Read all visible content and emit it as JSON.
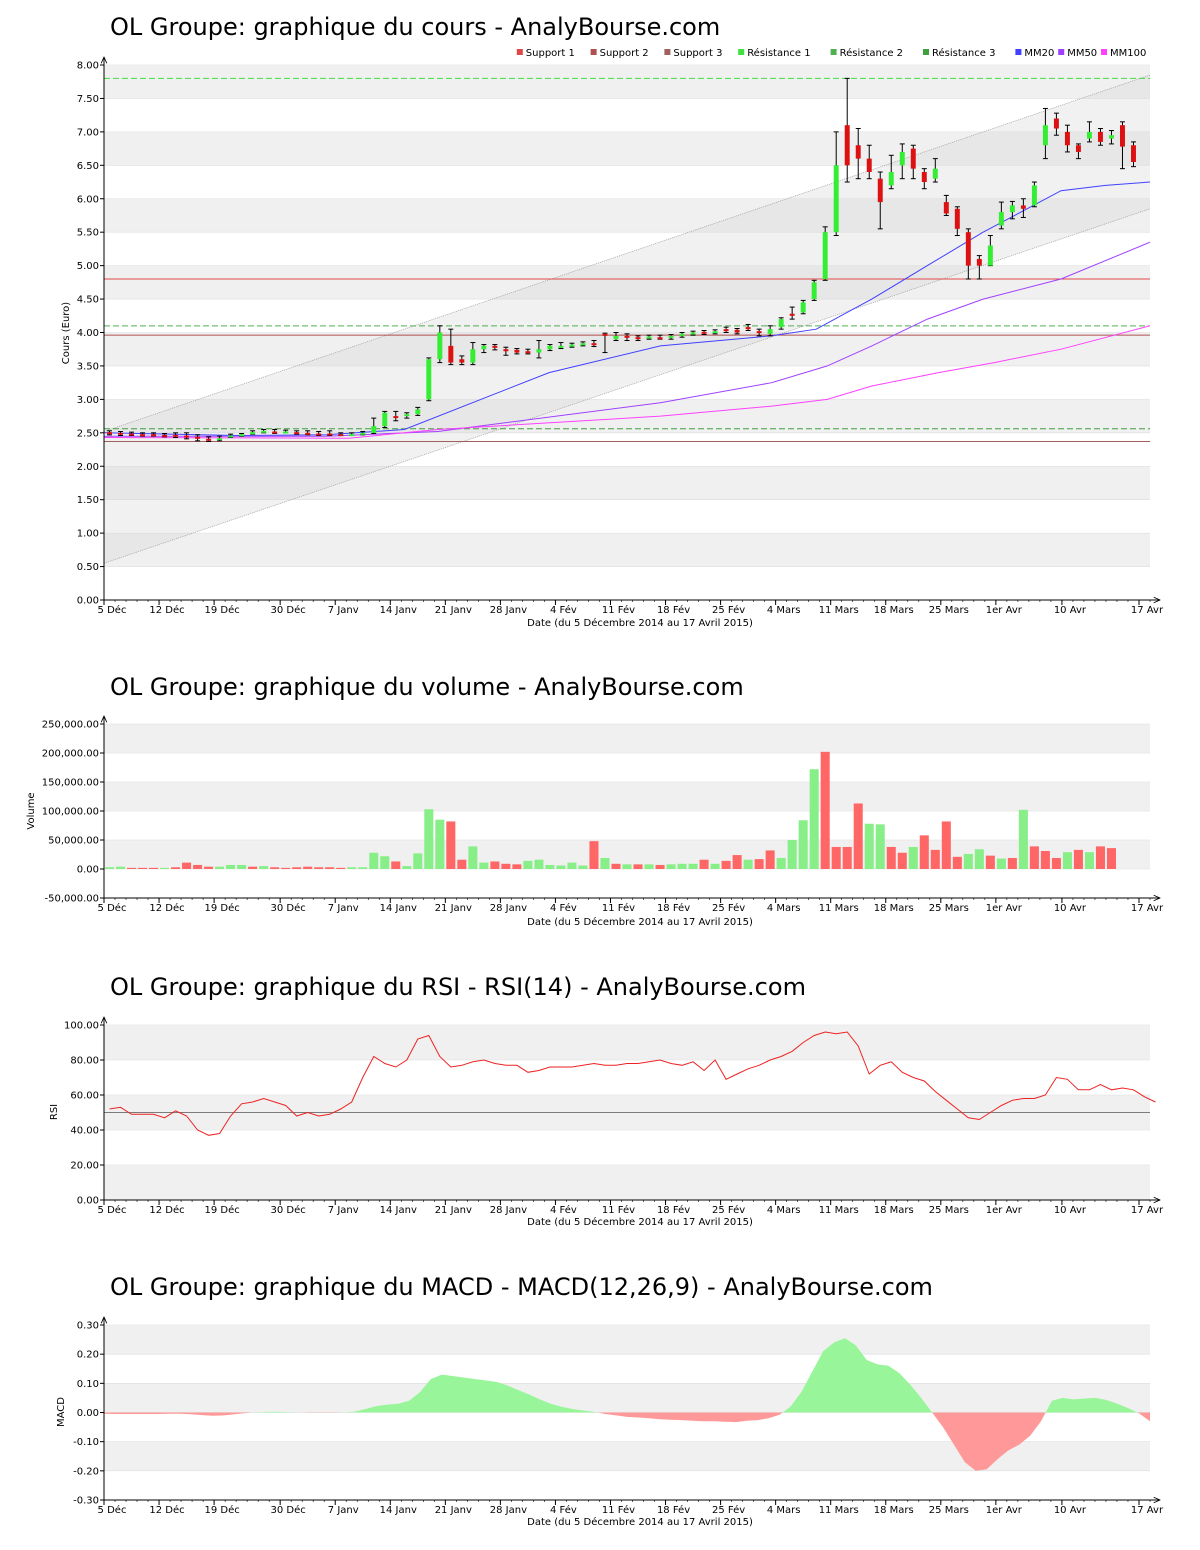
{
  "page": {
    "site": "AnalyBourse.com"
  },
  "chart_data": [
    {
      "id": "price",
      "type": "candlestick",
      "title": "OL Groupe: graphique du cours - AnalyBourse.com",
      "xlabel": "Date (du 5 Décembre 2014 au 17 Avril 2015)",
      "ylabel": "Cours (Euro)",
      "ylim": [
        0,
        8
      ],
      "yticks": [
        "0.00",
        "0.50",
        "1.00",
        "1.50",
        "2.00",
        "2.50",
        "3.00",
        "3.50",
        "4.00",
        "4.50",
        "5.00",
        "5.50",
        "6.00",
        "6.50",
        "7.00",
        "7.50",
        "8.00"
      ],
      "x_ticks": [
        "5 Déc",
        "12 Déc",
        "19 Déc",
        "30 Déc",
        "7 Janv",
        "14 Janv",
        "21 Janv",
        "28 Janv",
        "4 Fév",
        "11 Fév",
        "18 Fév",
        "25 Fév",
        "4 Mars",
        "11 Mars",
        "18 Mars",
        "25 Mars",
        "1er Avr",
        "10 Avr",
        "17 Avr"
      ],
      "legend": [
        {
          "name": "Support 1",
          "color": "#e04848"
        },
        {
          "name": "Support 2",
          "color": "#b05050"
        },
        {
          "name": "Support 3",
          "color": "#a06060"
        },
        {
          "name": "Résistance 1",
          "color": "#40e040"
        },
        {
          "name": "Résistance 2",
          "color": "#50b050"
        },
        {
          "name": "Résistance 3",
          "color": "#40a040"
        },
        {
          "name": "MM20",
          "color": "#4040ff"
        },
        {
          "name": "MM50",
          "color": "#a040ff"
        },
        {
          "name": "MM100",
          "color": "#ff40ff"
        }
      ],
      "supports": [
        4.8,
        3.96,
        2.37
      ],
      "resistances": [
        7.8,
        4.1,
        2.56
      ],
      "candles": [
        [
          2.51,
          2.5,
          2.53,
          2.47
        ],
        [
          2.5,
          2.49,
          2.52,
          2.46
        ],
        [
          2.49,
          2.48,
          2.51,
          2.46
        ],
        [
          2.48,
          2.47,
          2.5,
          2.45
        ],
        [
          2.48,
          2.47,
          2.5,
          2.45
        ],
        [
          2.47,
          2.46,
          2.49,
          2.44
        ],
        [
          2.47,
          2.46,
          2.5,
          2.43
        ],
        [
          2.46,
          2.45,
          2.5,
          2.41
        ],
        [
          2.44,
          2.42,
          2.47,
          2.38
        ],
        [
          2.41,
          2.4,
          2.44,
          2.37
        ],
        [
          2.4,
          2.42,
          2.45,
          2.38
        ],
        [
          2.44,
          2.46,
          2.48,
          2.43
        ],
        [
          2.46,
          2.48,
          2.49,
          2.45
        ],
        [
          2.49,
          2.51,
          2.53,
          2.48
        ],
        [
          2.51,
          2.53,
          2.55,
          2.5
        ],
        [
          2.52,
          2.51,
          2.55,
          2.49
        ],
        [
          2.51,
          2.52,
          2.54,
          2.5
        ],
        [
          2.51,
          2.5,
          2.53,
          2.48
        ],
        [
          2.5,
          2.49,
          2.53,
          2.47
        ],
        [
          2.49,
          2.48,
          2.52,
          2.46
        ],
        [
          2.49,
          2.48,
          2.53,
          2.46
        ],
        [
          2.48,
          2.47,
          2.5,
          2.46
        ],
        [
          2.47,
          2.48,
          2.5,
          2.46
        ],
        [
          2.48,
          2.5,
          2.52,
          2.47
        ],
        [
          2.5,
          2.6,
          2.72,
          2.49
        ],
        [
          2.6,
          2.8,
          2.82,
          2.58
        ],
        [
          2.75,
          2.72,
          2.82,
          2.68
        ],
        [
          2.75,
          2.78,
          2.8,
          2.72
        ],
        [
          2.78,
          2.85,
          2.88,
          2.76
        ],
        [
          3.0,
          3.6,
          3.62,
          2.98
        ],
        [
          3.6,
          4.0,
          4.1,
          3.55
        ],
        [
          3.8,
          3.55,
          4.05,
          3.52
        ],
        [
          3.6,
          3.55,
          3.65,
          3.52
        ],
        [
          3.55,
          3.75,
          3.85,
          3.52
        ],
        [
          3.75,
          3.8,
          3.82,
          3.7
        ],
        [
          3.8,
          3.78,
          3.82,
          3.74
        ],
        [
          3.75,
          3.72,
          3.78,
          3.66
        ],
        [
          3.74,
          3.7,
          3.76,
          3.68
        ],
        [
          3.72,
          3.7,
          3.75,
          3.68
        ],
        [
          3.7,
          3.75,
          3.88,
          3.62
        ],
        [
          3.75,
          3.8,
          3.82,
          3.73
        ],
        [
          3.78,
          3.8,
          3.85,
          3.76
        ],
        [
          3.8,
          3.82,
          3.84,
          3.78
        ],
        [
          3.82,
          3.84,
          3.86,
          3.8
        ],
        [
          3.84,
          3.82,
          3.88,
          3.79
        ],
        [
          3.98,
          3.95,
          3.99,
          3.7
        ],
        [
          3.9,
          3.95,
          4.0,
          3.88
        ],
        [
          3.95,
          3.92,
          3.98,
          3.88
        ],
        [
          3.93,
          3.9,
          3.95,
          3.88
        ],
        [
          3.92,
          3.94,
          3.96,
          3.9
        ],
        [
          3.93,
          3.92,
          3.96,
          3.9
        ],
        [
          3.92,
          3.95,
          3.97,
          3.9
        ],
        [
          3.95,
          3.98,
          4.0,
          3.93
        ],
        [
          3.98,
          4.0,
          4.02,
          3.96
        ],
        [
          4.01,
          3.99,
          4.03,
          3.97
        ],
        [
          4.0,
          4.02,
          4.04,
          3.98
        ],
        [
          4.05,
          4.02,
          4.08,
          4.0
        ],
        [
          4.04,
          4.0,
          4.06,
          3.98
        ],
        [
          4.08,
          4.05,
          4.12,
          4.03
        ],
        [
          4.02,
          3.99,
          4.05,
          3.95
        ],
        [
          3.98,
          4.05,
          4.1,
          3.95
        ],
        [
          4.08,
          4.2,
          4.22,
          4.05
        ],
        [
          4.28,
          4.25,
          4.38,
          4.2
        ],
        [
          4.3,
          4.45,
          4.48,
          4.28
        ],
        [
          4.5,
          4.75,
          4.78,
          4.48
        ],
        [
          4.8,
          5.5,
          5.58,
          4.78
        ],
        [
          5.5,
          6.5,
          7.0,
          5.45
        ],
        [
          7.1,
          6.5,
          7.8,
          6.25
        ],
        [
          6.8,
          6.6,
          7.05,
          6.3
        ],
        [
          6.6,
          6.4,
          6.8,
          6.3
        ],
        [
          6.3,
          5.95,
          6.4,
          5.55
        ],
        [
          6.2,
          6.4,
          6.65,
          6.15
        ],
        [
          6.5,
          6.7,
          6.82,
          6.3
        ],
        [
          6.75,
          6.45,
          6.8,
          6.3
        ],
        [
          6.4,
          6.25,
          6.45,
          6.15
        ],
        [
          6.3,
          6.45,
          6.6,
          6.25
        ],
        [
          5.95,
          5.78,
          6.05,
          5.75
        ],
        [
          5.85,
          5.55,
          5.88,
          5.45
        ],
        [
          5.5,
          5.0,
          5.55,
          4.8
        ],
        [
          5.1,
          5.0,
          5.15,
          4.8
        ],
        [
          5.0,
          5.3,
          5.45,
          5.0
        ],
        [
          5.6,
          5.8,
          5.95,
          5.55
        ],
        [
          5.8,
          5.9,
          5.96,
          5.7
        ],
        [
          5.9,
          5.85,
          6.0,
          5.72
        ],
        [
          5.9,
          6.2,
          6.25,
          5.88
        ],
        [
          6.8,
          7.1,
          7.35,
          6.6
        ],
        [
          7.2,
          7.05,
          7.28,
          6.95
        ],
        [
          7.0,
          6.8,
          7.1,
          6.7
        ],
        [
          6.8,
          6.7,
          6.82,
          6.6
        ],
        [
          6.9,
          7.0,
          7.15,
          6.85
        ],
        [
          7.0,
          6.85,
          7.05,
          6.8
        ],
        [
          6.9,
          6.95,
          7.02,
          6.82
        ],
        [
          7.1,
          6.78,
          7.15,
          6.45
        ],
        [
          6.8,
          6.55,
          6.85,
          6.48
        ]
      ],
      "mm20": [
        [
          0,
          2.5
        ],
        [
          12,
          2.46
        ],
        [
          20,
          2.47
        ],
        [
          27,
          2.55
        ],
        [
          40,
          3.4
        ],
        [
          50,
          3.8
        ],
        [
          60,
          3.95
        ],
        [
          64,
          4.05
        ],
        [
          69,
          4.5
        ],
        [
          74,
          5.0
        ],
        [
          79,
          5.5
        ],
        [
          86,
          6.12
        ],
        [
          90,
          6.2
        ],
        [
          94,
          6.25
        ]
      ],
      "mm50": [
        [
          0,
          2.45
        ],
        [
          20,
          2.45
        ],
        [
          30,
          2.52
        ],
        [
          50,
          2.95
        ],
        [
          60,
          3.25
        ],
        [
          65,
          3.5
        ],
        [
          69,
          3.8
        ],
        [
          74,
          4.2
        ],
        [
          79,
          4.5
        ],
        [
          86,
          4.8
        ],
        [
          94,
          5.35
        ]
      ],
      "mm100": [
        [
          0,
          2.43
        ],
        [
          22,
          2.42
        ],
        [
          30,
          2.55
        ],
        [
          50,
          2.75
        ],
        [
          60,
          2.9
        ],
        [
          65,
          3.0
        ],
        [
          69,
          3.2
        ],
        [
          75,
          3.4
        ],
        [
          80,
          3.55
        ],
        [
          86,
          3.75
        ],
        [
          94,
          4.1
        ]
      ],
      "channel_upper": [
        [
          0,
          2.52
        ],
        [
          94,
          7.85
        ]
      ],
      "channel_lower": [
        [
          0,
          0.55
        ],
        [
          94,
          5.85
        ]
      ]
    },
    {
      "id": "volume",
      "type": "bar",
      "title": "OL Groupe: graphique du volume - AnalyBourse.com",
      "xlabel": "Date (du 5 Décembre 2014 au 17 Avril 2015)",
      "ylabel": "Volume",
      "ylim": [
        -50000,
        250000
      ],
      "yticks": [
        "-50,000.00",
        "0.00",
        "50,000.00",
        "100,000.00",
        "150,000.00",
        "200,000.00",
        "250,000.00"
      ],
      "x_ticks": [
        "5 Déc",
        "12 Déc",
        "19 Déc",
        "30 Déc",
        "7 Janv",
        "14 Janv",
        "21 Janv",
        "28 Janv",
        "4 Fév",
        "11 Fév",
        "18 Fév",
        "25 Fév",
        "4 Mars",
        "11 Mars",
        "18 Mars",
        "25 Mars",
        "1er Avr",
        "10 Avr",
        "17 Avr"
      ],
      "values": [
        3000,
        4000,
        2000,
        2000,
        2000,
        2000,
        3000,
        11000,
        7000,
        4000,
        4000,
        7000,
        7000,
        4000,
        5000,
        3000,
        2000,
        3000,
        4000,
        3000,
        3000,
        2000,
        3000,
        3000,
        28000,
        22000,
        13000,
        5000,
        27000,
        103000,
        85000,
        82000,
        16000,
        39000,
        11000,
        13000,
        9000,
        8000,
        14000,
        16000,
        7000,
        6000,
        11000,
        6000,
        48000,
        19000,
        9000,
        8000,
        8000,
        8000,
        7000,
        8000,
        9000,
        9000,
        16000,
        9000,
        14000,
        24000,
        16000,
        17000,
        32000,
        19000,
        50000,
        84000,
        172000,
        202000,
        38000,
        38000,
        113000,
        78000,
        77000,
        38000,
        28000,
        38000,
        58000,
        33000,
        82000,
        21000,
        26000,
        34000,
        23000,
        18000,
        19000,
        102000,
        39000,
        31000,
        19000,
        29000,
        33000,
        29000,
        39000,
        36000
      ],
      "up": [
        1,
        1,
        0,
        0,
        0,
        1,
        0,
        0,
        0,
        0,
        1,
        1,
        1,
        0,
        1,
        0,
        0,
        0,
        0,
        0,
        0,
        0,
        1,
        1,
        1,
        1,
        0,
        1,
        1,
        1,
        1,
        0,
        0,
        1,
        1,
        0,
        0,
        0,
        1,
        1,
        1,
        1,
        1,
        1,
        0,
        1,
        0,
        1,
        0,
        1,
        0,
        1,
        1,
        1,
        0,
        1,
        0,
        0,
        1,
        0,
        0,
        1,
        1,
        1,
        1,
        0,
        0,
        0,
        0,
        1,
        1,
        0,
        0,
        1,
        0,
        0,
        0,
        0,
        1,
        1,
        0,
        1,
        0,
        1,
        0,
        0,
        0,
        1,
        0,
        1,
        0,
        0
      ]
    },
    {
      "id": "rsi",
      "type": "line",
      "title": "OL Groupe: graphique du RSI - RSI(14) - AnalyBourse.com",
      "xlabel": "Date (du 5 Décembre 2014 au 17 Avril 2015)",
      "ylabel": "RSI",
      "ylim": [
        0,
        100
      ],
      "yticks": [
        "0.00",
        "20.00",
        "40.00",
        "60.00",
        "80.00",
        "100.00"
      ],
      "x_ticks": [
        "5 Déc",
        "12 Déc",
        "19 Déc",
        "30 Déc",
        "7 Janv",
        "14 Janv",
        "21 Janv",
        "28 Janv",
        "4 Fév",
        "11 Fév",
        "18 Fév",
        "25 Fév",
        "4 Mars",
        "11 Mars",
        "18 Mars",
        "25 Mars",
        "1er Avr",
        "10 Avr",
        "17 Avr"
      ],
      "reference_line": 50,
      "values": [
        52,
        53,
        49,
        49,
        49,
        47,
        51,
        48,
        40,
        37,
        38,
        48,
        55,
        56,
        58,
        56,
        54,
        48,
        50,
        48,
        49,
        52,
        56,
        70,
        82,
        78,
        76,
        80,
        92,
        94,
        82,
        76,
        77,
        79,
        80,
        78,
        77,
        77,
        73,
        74,
        76,
        76,
        76,
        77,
        78,
        77,
        77,
        78,
        78,
        79,
        80,
        78,
        77,
        79,
        74,
        80,
        69,
        72,
        75,
        77,
        80,
        82,
        85,
        90,
        94,
        96,
        95,
        96,
        88,
        72,
        77,
        79,
        73,
        70,
        68,
        62,
        57,
        52,
        47,
        46,
        50,
        54,
        57,
        58,
        58,
        60,
        70,
        69,
        63,
        63,
        66,
        63,
        64,
        63,
        59,
        56
      ]
    },
    {
      "id": "macd",
      "type": "area",
      "title": "OL Groupe: graphique du MACD - MACD(12,26,9) - AnalyBourse.com",
      "xlabel": "Date (du 5 Décembre 2014 au 17 Avril 2015)",
      "ylabel": "MACD",
      "ylim": [
        -0.3,
        0.3
      ],
      "yticks": [
        "-0.30",
        "-0.20",
        "-0.10",
        "0.00",
        "0.10",
        "0.20",
        "0.30"
      ],
      "x_ticks": [
        "5 Déc",
        "12 Déc",
        "19 Déc",
        "30 Déc",
        "7 Janv",
        "14 Janv",
        "21 Janv",
        "28 Janv",
        "4 Fév",
        "11 Fév",
        "18 Fév",
        "25 Fév",
        "4 Mars",
        "11 Mars",
        "18 Mars",
        "25 Mars",
        "1er Avr",
        "10 Avr",
        "17 Avr"
      ],
      "values": [
        -0.004,
        -0.005,
        -0.005,
        -0.005,
        -0.005,
        -0.005,
        -0.004,
        -0.004,
        -0.006,
        -0.009,
        -0.011,
        -0.01,
        -0.006,
        -0.002,
        0.001,
        0.002,
        0.002,
        0.001,
        0.0,
        -0.001,
        -0.001,
        -0.001,
        0.0,
        0.003,
        0.012,
        0.022,
        0.027,
        0.03,
        0.04,
        0.07,
        0.115,
        0.13,
        0.125,
        0.12,
        0.115,
        0.11,
        0.105,
        0.093,
        0.077,
        0.062,
        0.045,
        0.03,
        0.02,
        0.012,
        0.007,
        0.002,
        -0.005,
        -0.01,
        -0.015,
        -0.017,
        -0.02,
        -0.023,
        -0.025,
        -0.026,
        -0.028,
        -0.03,
        -0.03,
        -0.032,
        -0.033,
        -0.028,
        -0.026,
        -0.02,
        -0.008,
        0.02,
        0.07,
        0.14,
        0.21,
        0.24,
        0.255,
        0.23,
        0.18,
        0.165,
        0.16,
        0.135,
        0.095,
        0.05,
        0.0,
        -0.05,
        -0.11,
        -0.17,
        -0.2,
        -0.195,
        -0.16,
        -0.13,
        -0.11,
        -0.08,
        -0.03,
        0.04,
        0.05,
        0.045,
        0.048,
        0.05,
        0.043,
        0.03,
        0.015,
        -0.003,
        -0.03
      ]
    }
  ]
}
